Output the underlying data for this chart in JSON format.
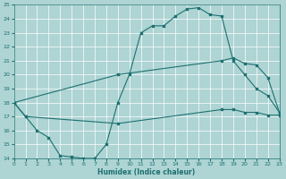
{
  "xlabel": "Humidex (Indice chaleur)",
  "xlim": [
    0,
    23
  ],
  "ylim": [
    14,
    25
  ],
  "xticks": [
    0,
    1,
    2,
    3,
    4,
    5,
    6,
    7,
    8,
    9,
    10,
    11,
    12,
    13,
    14,
    15,
    16,
    17,
    18,
    19,
    20,
    21,
    22,
    23
  ],
  "yticks": [
    14,
    15,
    16,
    17,
    18,
    19,
    20,
    21,
    22,
    23,
    24,
    25
  ],
  "bg_color": "#aed4d4",
  "line_color": "#1e7070",
  "grid_color": "#ffffff",
  "line1_x": [
    0,
    1,
    2,
    3,
    4,
    5,
    6,
    7,
    8,
    9,
    10,
    11,
    12,
    13,
    14,
    15,
    16,
    17,
    18,
    19,
    20,
    21,
    22,
    23
  ],
  "line1_y": [
    18,
    17,
    16,
    15.5,
    14.2,
    14.1,
    14.0,
    14.0,
    15.0,
    18.0,
    20.0,
    23.0,
    23.5,
    23.5,
    24.2,
    24.7,
    24.8,
    24.3,
    24.2,
    21.0,
    20.0,
    19.0,
    18.5,
    17.3
  ],
  "line2_x": [
    0,
    9,
    18,
    19,
    20,
    21,
    22,
    23
  ],
  "line2_y": [
    18,
    20,
    21.0,
    21.2,
    20.8,
    20.7,
    19.8,
    17.3
  ],
  "line3_x": [
    0,
    1,
    9,
    18,
    19,
    20,
    21,
    22,
    23
  ],
  "line3_y": [
    18,
    17,
    16.5,
    17.5,
    17.5,
    17.3,
    17.3,
    17.1,
    17.1
  ]
}
